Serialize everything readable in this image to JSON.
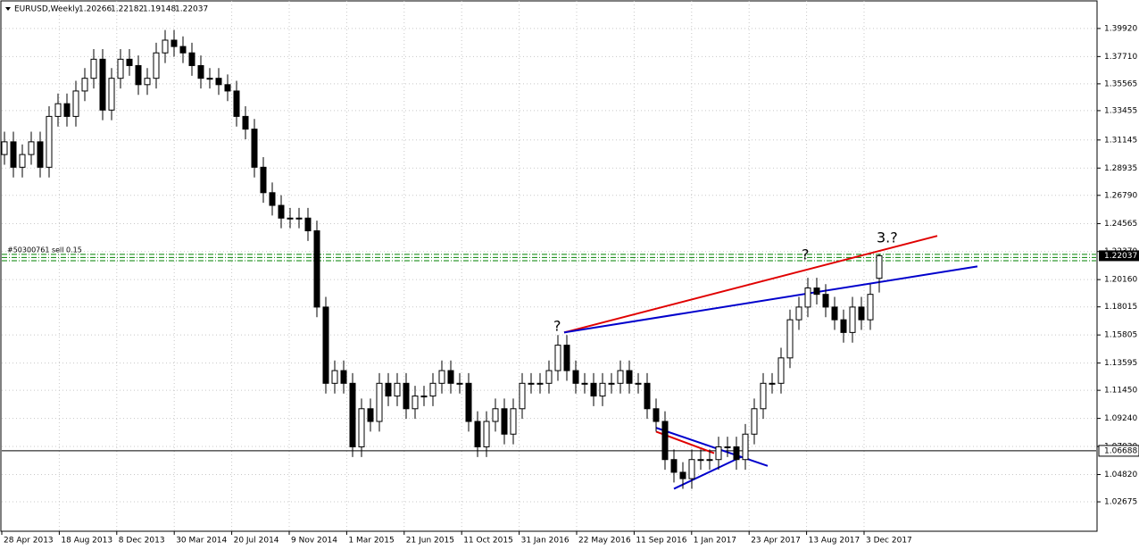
{
  "chart_data": {
    "type": "candlestick",
    "title": "EURUSD,Weekly",
    "ylim": [
      1.0036,
      1.4209
    ],
    "yticks": [
      {
        "value": 1.3992,
        "label": "1.39920"
      },
      {
        "value": 1.3771,
        "label": "1.37710"
      },
      {
        "value": 1.35565,
        "label": "1.35565"
      },
      {
        "value": 1.33455,
        "label": "1.33455"
      },
      {
        "value": 1.31145,
        "label": "1.31145"
      },
      {
        "value": 1.28935,
        "label": "1.28935"
      },
      {
        "value": 1.2679,
        "label": "1.26790"
      },
      {
        "value": 1.24565,
        "label": "1.24565"
      },
      {
        "value": 1.2237,
        "label": "1.22370"
      },
      {
        "value": 1.2016,
        "label": "1.20160"
      },
      {
        "value": 1.18015,
        "label": "1.18015"
      },
      {
        "value": 1.15805,
        "label": "1.15805"
      },
      {
        "value": 1.13595,
        "label": "1.13595"
      },
      {
        "value": 1.1145,
        "label": "1.11450"
      },
      {
        "value": 1.0924,
        "label": "1.09240"
      },
      {
        "value": 1.0703,
        "label": "1.07030"
      },
      {
        "value": 1.0482,
        "label": "1.04820"
      },
      {
        "value": 1.02675,
        "label": "1.02675"
      }
    ],
    "x_labels": [
      "28 Apr 2013",
      "18 Aug 2013",
      "8 Dec 2013",
      "30 Mar 2014",
      "20 Jul 2014",
      "9 Nov 2014",
      "1 Mar 2015",
      "21 Jun 2015",
      "11 Oct 2015",
      "31 Jan 2016",
      "22 May 2016",
      "11 Sep 2016",
      "1 Jan 2017",
      "23 Apr 2017",
      "13 Aug 2017",
      "3 Dec 2017"
    ],
    "grid": true,
    "open": [
      1.3,
      1.31,
      1.29,
      1.3,
      1.31,
      1.29,
      1.33,
      1.34,
      1.33,
      1.35,
      1.36,
      1.375,
      1.335,
      1.36,
      1.375,
      1.37,
      1.355,
      1.36,
      1.38,
      1.39,
      1.385,
      1.38,
      1.37,
      1.36,
      1.36,
      1.355,
      1.35,
      1.33,
      1.32,
      1.29,
      1.27,
      1.26,
      1.25,
      1.25,
      1.25,
      1.24,
      1.18,
      1.12,
      1.13,
      1.12,
      1.07,
      1.1,
      1.09,
      1.12,
      1.11,
      1.12,
      1.1,
      1.11,
      1.11,
      1.12,
      1.13,
      1.12,
      1.12,
      1.09,
      1.07,
      1.09,
      1.1,
      1.08,
      1.1,
      1.12,
      1.12,
      1.12,
      1.13,
      1.15,
      1.13,
      1.12,
      1.12,
      1.11,
      1.12,
      1.12,
      1.13,
      1.12,
      1.12,
      1.1,
      1.09,
      1.06,
      1.05,
      1.045,
      1.06,
      1.06,
      1.06,
      1.07,
      1.07,
      1.06,
      1.08,
      1.1,
      1.12,
      1.12,
      1.14,
      1.17,
      1.18,
      1.195,
      1.19,
      1.18,
      1.17,
      1.16,
      1.18,
      1.17,
      1.20266
    ],
    "high": [
      1.318,
      1.318,
      1.308,
      1.318,
      1.318,
      1.338,
      1.348,
      1.348,
      1.358,
      1.368,
      1.383,
      1.383,
      1.368,
      1.383,
      1.383,
      1.378,
      1.368,
      1.388,
      1.398,
      1.398,
      1.393,
      1.388,
      1.378,
      1.368,
      1.368,
      1.363,
      1.358,
      1.338,
      1.328,
      1.298,
      1.278,
      1.268,
      1.258,
      1.258,
      1.258,
      1.248,
      1.188,
      1.138,
      1.138,
      1.128,
      1.108,
      1.108,
      1.128,
      1.128,
      1.128,
      1.128,
      1.118,
      1.118,
      1.128,
      1.138,
      1.138,
      1.128,
      1.128,
      1.098,
      1.098,
      1.108,
      1.108,
      1.108,
      1.128,
      1.128,
      1.128,
      1.138,
      1.158,
      1.158,
      1.138,
      1.128,
      1.128,
      1.128,
      1.128,
      1.138,
      1.138,
      1.128,
      1.128,
      1.108,
      1.098,
      1.068,
      1.058,
      1.068,
      1.068,
      1.068,
      1.078,
      1.078,
      1.078,
      1.088,
      1.108,
      1.128,
      1.128,
      1.148,
      1.178,
      1.188,
      1.203,
      1.203,
      1.198,
      1.188,
      1.178,
      1.188,
      1.188,
      1.198,
      1.22182
    ],
    "low": [
      1.292,
      1.282,
      1.282,
      1.292,
      1.282,
      1.282,
      1.322,
      1.322,
      1.322,
      1.342,
      1.352,
      1.327,
      1.327,
      1.352,
      1.362,
      1.347,
      1.347,
      1.352,
      1.372,
      1.377,
      1.372,
      1.362,
      1.352,
      1.352,
      1.347,
      1.342,
      1.322,
      1.312,
      1.282,
      1.262,
      1.252,
      1.242,
      1.242,
      1.242,
      1.232,
      1.172,
      1.112,
      1.112,
      1.112,
      1.062,
      1.062,
      1.082,
      1.082,
      1.102,
      1.102,
      1.092,
      1.092,
      1.102,
      1.102,
      1.112,
      1.112,
      1.112,
      1.082,
      1.062,
      1.062,
      1.082,
      1.072,
      1.072,
      1.092,
      1.112,
      1.112,
      1.112,
      1.122,
      1.122,
      1.112,
      1.112,
      1.102,
      1.102,
      1.112,
      1.112,
      1.112,
      1.112,
      1.092,
      1.082,
      1.052,
      1.042,
      1.037,
      1.037,
      1.052,
      1.052,
      1.052,
      1.062,
      1.052,
      1.052,
      1.072,
      1.092,
      1.112,
      1.112,
      1.132,
      1.162,
      1.172,
      1.182,
      1.172,
      1.162,
      1.152,
      1.152,
      1.162,
      1.162,
      1.19148
    ],
    "close": [
      1.31,
      1.29,
      1.3,
      1.31,
      1.29,
      1.33,
      1.34,
      1.33,
      1.35,
      1.36,
      1.375,
      1.335,
      1.36,
      1.375,
      1.37,
      1.355,
      1.36,
      1.38,
      1.39,
      1.385,
      1.38,
      1.37,
      1.36,
      1.36,
      1.355,
      1.35,
      1.33,
      1.32,
      1.29,
      1.27,
      1.26,
      1.25,
      1.25,
      1.25,
      1.24,
      1.18,
      1.12,
      1.13,
      1.12,
      1.07,
      1.1,
      1.09,
      1.12,
      1.11,
      1.12,
      1.1,
      1.11,
      1.11,
      1.12,
      1.13,
      1.12,
      1.12,
      1.09,
      1.07,
      1.09,
      1.1,
      1.08,
      1.1,
      1.12,
      1.12,
      1.12,
      1.13,
      1.15,
      1.13,
      1.12,
      1.12,
      1.11,
      1.12,
      1.12,
      1.13,
      1.12,
      1.12,
      1.1,
      1.09,
      1.06,
      1.05,
      1.045,
      1.06,
      1.06,
      1.06,
      1.07,
      1.07,
      1.06,
      1.08,
      1.1,
      1.12,
      1.12,
      1.14,
      1.17,
      1.18,
      1.195,
      1.19,
      1.18,
      1.17,
      1.16,
      1.18,
      1.17,
      1.19,
      1.22037
    ],
    "hline": 1.06688,
    "order_label": "#50300761 sell 0.15",
    "order_levels": [
      1.2215,
      1.219,
      1.2165
    ],
    "trendlines": [
      {
        "color": "#e00000",
        "from": [
          62.7,
          1.16
        ],
        "to": [
          104.5,
          1.236
        ]
      },
      {
        "color": "#0000cc",
        "from": [
          62.7,
          1.16
        ],
        "to": [
          109,
          1.212
        ]
      },
      {
        "color": "#0000cc",
        "from": [
          73,
          1.085
        ],
        "to": [
          85.5,
          1.055
        ]
      },
      {
        "color": "#0000cc",
        "from": [
          75,
          1.037
        ],
        "to": [
          82.5,
          1.062
        ]
      },
      {
        "color": "#e00000",
        "from": [
          73,
          1.082
        ],
        "to": [
          79.5,
          1.065
        ]
      }
    ],
    "annotations": [
      "?",
      "?",
      "3.?"
    ]
  }
}
